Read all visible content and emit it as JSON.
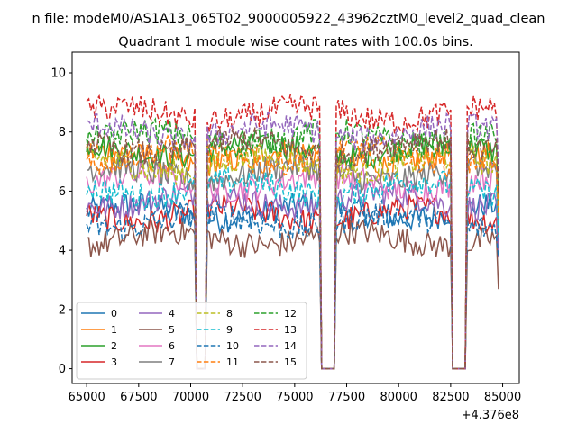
{
  "figure": {
    "suptitle": "n file: modeM0/AS1A13_065T02_9000005922_43962cztM0_level2_quad_clean",
    "background": "#ffffff"
  },
  "chart_data": {
    "type": "line",
    "title": "Quadrant 1 module wise count rates with 100.0s bins.",
    "xlabel": "",
    "ylabel": "",
    "x_offset_label": "+4.376e8",
    "xlim": [
      64300,
      85800
    ],
    "ylim": [
      -0.5,
      10.7
    ],
    "xticks": [
      65000,
      67500,
      70000,
      72500,
      75000,
      77500,
      80000,
      82500,
      85000
    ],
    "xtick_labels": [
      "65000",
      "67500",
      "70000",
      "72500",
      "75000",
      "77500",
      "80000",
      "82500",
      "85000"
    ],
    "yticks": [
      0,
      2,
      4,
      6,
      8,
      10
    ],
    "ytick_labels": [
      "0",
      "2",
      "4",
      "6",
      "8",
      "10"
    ],
    "grid": false,
    "legend_placement": "lower-left",
    "legend_columns": 4,
    "x_start": 65000,
    "x_end": 84800,
    "x_step": 100,
    "gaps": [
      {
        "from": 70300,
        "to": 70500,
        "min": 0.0
      },
      {
        "from": 70600,
        "to": 70700,
        "min": 0.0
      },
      {
        "from": 76300,
        "to": 76600,
        "min": 0.0
      },
      {
        "from": 76700,
        "to": 76900,
        "min": 0.0
      },
      {
        "from": 82600,
        "to": 83200,
        "min": 0.0
      }
    ],
    "series": [
      {
        "name": "0",
        "mean": 5.3,
        "color": "#1f77b4",
        "dash": "solid"
      },
      {
        "name": "1",
        "mean": 7.1,
        "color": "#ff7f0e",
        "dash": "solid"
      },
      {
        "name": "2",
        "mean": 7.4,
        "color": "#2ca02c",
        "dash": "solid"
      },
      {
        "name": "3",
        "mean": 5.2,
        "color": "#d62728",
        "dash": "solid"
      },
      {
        "name": "4",
        "mean": 5.7,
        "color": "#9467bd",
        "dash": "solid"
      },
      {
        "name": "5",
        "mean": 4.4,
        "color": "#8c564b",
        "dash": "solid"
      },
      {
        "name": "6",
        "mean": 6.3,
        "color": "#e377c2",
        "dash": "solid"
      },
      {
        "name": "7",
        "mean": 6.6,
        "color": "#7f7f7f",
        "dash": "solid"
      },
      {
        "name": "8",
        "mean": 6.9,
        "color": "#bcbd22",
        "dash": "dashed"
      },
      {
        "name": "9",
        "mean": 6.1,
        "color": "#17becf",
        "dash": "dashed"
      },
      {
        "name": "10",
        "mean": 5.0,
        "color": "#1f77b4",
        "dash": "dashed"
      },
      {
        "name": "11",
        "mean": 7.2,
        "color": "#ff7f0e",
        "dash": "dashed"
      },
      {
        "name": "12",
        "mean": 7.8,
        "color": "#2ca02c",
        "dash": "dashed"
      },
      {
        "name": "13",
        "mean": 8.6,
        "color": "#d62728",
        "dash": "dashed"
      },
      {
        "name": "14",
        "mean": 8.0,
        "color": "#9467bd",
        "dash": "dashed"
      },
      {
        "name": "15",
        "mean": 7.5,
        "color": "#8c564b",
        "dash": "dashed"
      }
    ]
  }
}
